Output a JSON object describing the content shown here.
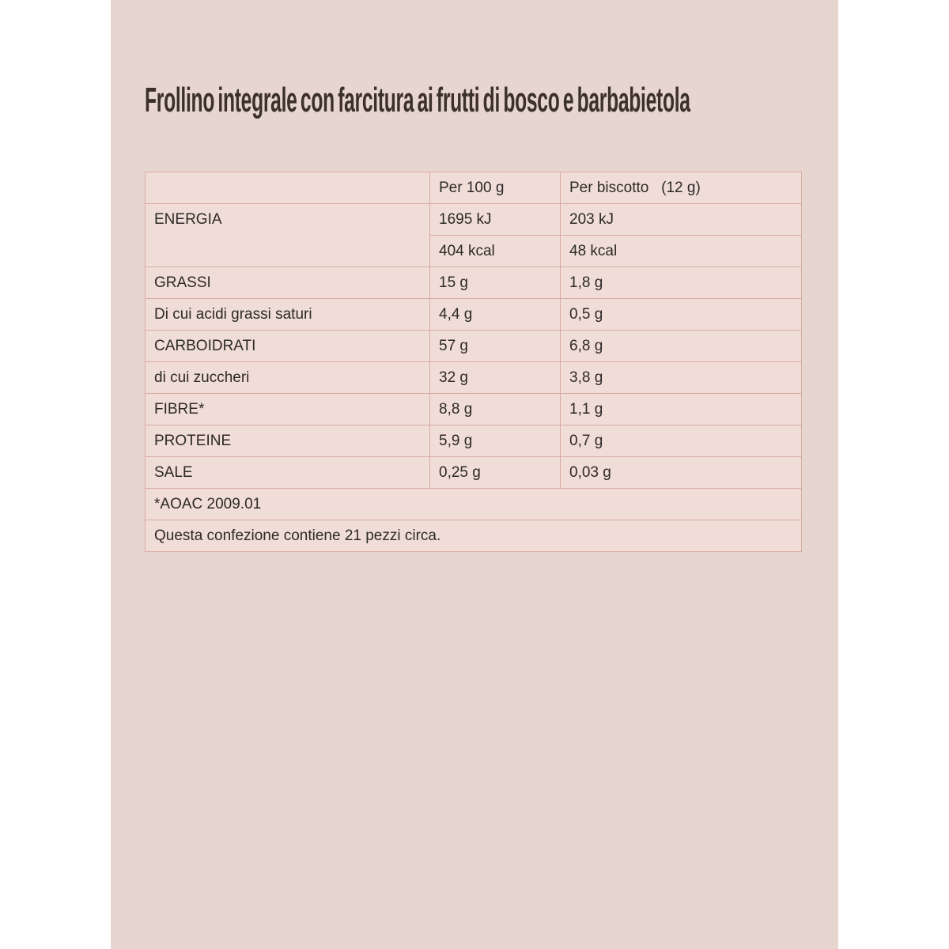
{
  "page": {
    "margin_color": "#ffffff",
    "panel_color": "#e7d5cf"
  },
  "title": {
    "text": "Frollino integrale con farcitura ai frutti di bosco e barbabietola",
    "color": "#3b302b"
  },
  "nutrition_table": {
    "colors": {
      "cell_background": "#f0ddd7",
      "border": "#d9aba2",
      "text": "#2d2927"
    },
    "columns": [
      "",
      "Per 100 g",
      "Per biscotto   (12 g)"
    ],
    "rows": [
      {
        "label": "ENERGIA",
        "per_100g": "1695 kJ",
        "per_biscotto": "203 kJ"
      },
      {
        "per_100g": "404 kcal",
        "per_biscotto": "48 kcal"
      },
      {
        "label": "GRASSI",
        "per_100g": "15 g",
        "per_biscotto": "1,8 g"
      },
      {
        "label": "Di cui acidi grassi saturi",
        "per_100g": "4,4 g",
        "per_biscotto": "0,5 g"
      },
      {
        "label": "CARBOIDRATI",
        "per_100g": "57 g",
        "per_biscotto": "6,8 g"
      },
      {
        "label": "di cui zuccheri",
        "per_100g": "32 g",
        "per_biscotto": "3,8 g"
      },
      {
        "label": "FIBRE*",
        "per_100g": "8,8 g",
        "per_biscotto": "1,1 g"
      },
      {
        "label": "PROTEINE",
        "per_100g": "5,9 g",
        "per_biscotto": "0,7 g"
      },
      {
        "label": "SALE",
        "per_100g": "0,25 g",
        "per_biscotto": "0,03 g"
      }
    ],
    "footnote": "*AOAC 2009.01",
    "package_note": "Questa confezione contiene 21 pezzi circa."
  }
}
